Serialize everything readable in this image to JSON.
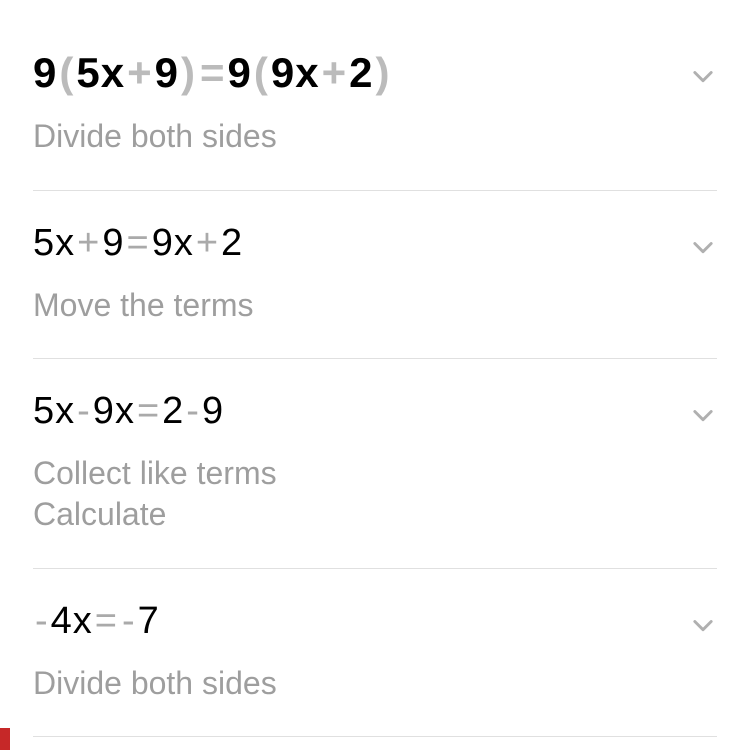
{
  "colors": {
    "text": "#000000",
    "operator": "#aaaaaa",
    "hint": "#9e9e9e",
    "divider": "#e0e0e0",
    "chevron": "#b0b0b0",
    "accent": "#c62828",
    "background": "#ffffff"
  },
  "typography": {
    "equation_big_fontsize": 42,
    "equation_big_weight": 700,
    "equation_fontsize": 38,
    "equation_weight": 400,
    "hint_fontsize": 32,
    "hint_weight": 400
  },
  "steps": [
    {
      "equation_tokens": [
        {
          "t": "9",
          "b": true
        },
        {
          "t": "(",
          "op": true
        },
        {
          "t": "5",
          "b": true
        },
        {
          "t": "x",
          "b": true
        },
        {
          "t": "+",
          "op": true
        },
        {
          "t": "9",
          "b": true
        },
        {
          "t": ")",
          "op": true
        },
        {
          "t": "=",
          "op": true
        },
        {
          "t": "9",
          "b": true
        },
        {
          "t": "(",
          "op": true
        },
        {
          "t": "9",
          "b": true
        },
        {
          "t": "x",
          "b": true
        },
        {
          "t": "+",
          "op": true
        },
        {
          "t": "2",
          "b": true
        },
        {
          "t": ")",
          "op": true
        }
      ],
      "big": true,
      "hints": [
        "Divide both sides"
      ]
    },
    {
      "equation_tokens": [
        {
          "t": "5"
        },
        {
          "t": "x"
        },
        {
          "t": "+",
          "op": true
        },
        {
          "t": "9"
        },
        {
          "t": "=",
          "op": true
        },
        {
          "t": "9"
        },
        {
          "t": "x"
        },
        {
          "t": "+",
          "op": true
        },
        {
          "t": "2"
        }
      ],
      "hints": [
        "Move the terms"
      ]
    },
    {
      "equation_tokens": [
        {
          "t": "5"
        },
        {
          "t": "x"
        },
        {
          "t": "-",
          "op": true
        },
        {
          "t": "9"
        },
        {
          "t": "x"
        },
        {
          "t": "=",
          "op": true
        },
        {
          "t": "2"
        },
        {
          "t": "-",
          "op": true
        },
        {
          "t": "9"
        }
      ],
      "hints": [
        "Collect like terms",
        "Calculate"
      ]
    },
    {
      "equation_tokens": [
        {
          "t": "-",
          "op": true
        },
        {
          "t": "4"
        },
        {
          "t": "x"
        },
        {
          "t": "=",
          "op": true
        },
        {
          "t": "-",
          "op": true
        },
        {
          "t": "7"
        }
      ],
      "hints": [
        "Divide both sides"
      ]
    }
  ]
}
